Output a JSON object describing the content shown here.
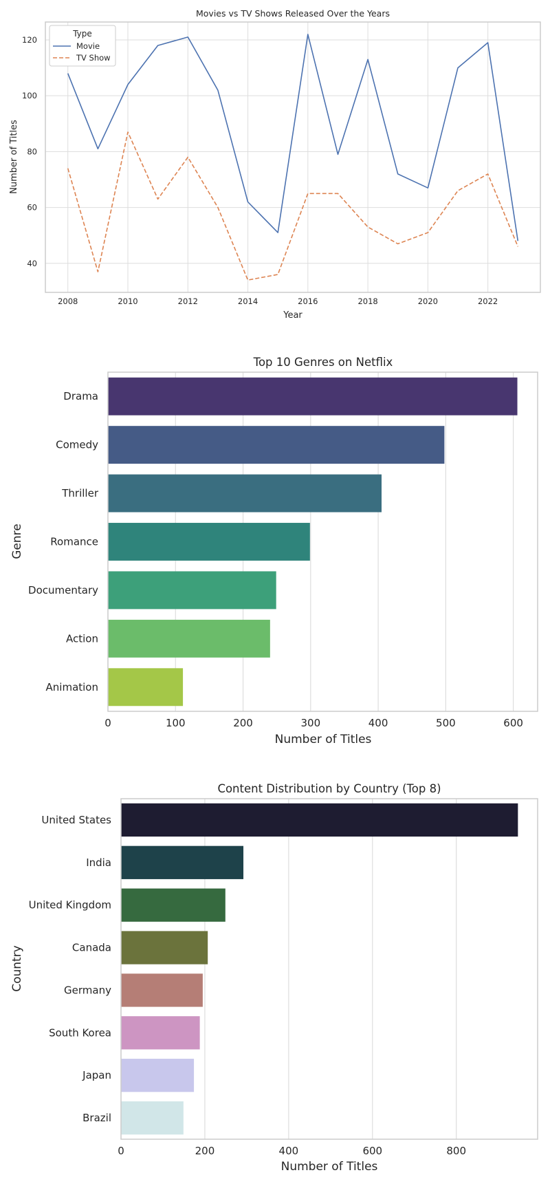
{
  "chart_data": [
    {
      "type": "line",
      "title": "Movies vs TV Shows Released Over the Years",
      "xlabel": "Year",
      "ylabel": "Number of Titles",
      "x": [
        2008,
        2009,
        2010,
        2011,
        2012,
        2013,
        2014,
        2015,
        2016,
        2017,
        2018,
        2019,
        2020,
        2021,
        2022,
        2023
      ],
      "xticks": [
        2008,
        2010,
        2012,
        2014,
        2016,
        2018,
        2020,
        2022
      ],
      "yticks": [
        40,
        60,
        80,
        100,
        120
      ],
      "xlim": [
        2007.25,
        2023.75
      ],
      "ylim": [
        29.6,
        126.4
      ],
      "grid": true,
      "legend": {
        "title": "Type",
        "placement": "top-left"
      },
      "series": [
        {
          "name": "Movie",
          "color": "#4c72b0",
          "dash": "solid",
          "values": [
            108,
            81,
            104,
            118,
            121,
            102,
            62,
            51,
            122,
            79,
            113,
            72,
            67,
            110,
            119,
            48
          ]
        },
        {
          "name": "TV Show",
          "color": "#dd8452",
          "dash": "dashed",
          "values": [
            74,
            37,
            87,
            63,
            78,
            60,
            34,
            36,
            65,
            65,
            53,
            47,
            51,
            66,
            72,
            46
          ]
        }
      ]
    },
    {
      "type": "bar",
      "orientation": "horizontal",
      "title": "Top 10 Genres on Netflix",
      "xlabel": "Number of Titles",
      "ylabel": "Genre",
      "categories": [
        "Drama",
        "Comedy",
        "Thriller",
        "Romance",
        "Documentary",
        "Action",
        "Animation"
      ],
      "values": [
        606,
        498,
        405,
        299,
        249,
        240,
        111
      ],
      "colors": [
        "#48366f",
        "#455b86",
        "#3a6e80",
        "#2f847b",
        "#3da07a",
        "#6bbc6a",
        "#a4c748"
      ],
      "xticks": [
        0,
        100,
        200,
        300,
        400,
        500,
        600
      ],
      "xlim": [
        0,
        636
      ],
      "grid": true
    },
    {
      "type": "bar",
      "orientation": "horizontal",
      "title": "Content Distribution by Country (Top 8)",
      "xlabel": "Number of Titles",
      "ylabel": "Country",
      "categories": [
        "United States",
        "India",
        "United Kingdom",
        "Canada",
        "Germany",
        "South Korea",
        "Japan",
        "Brazil"
      ],
      "values": [
        947,
        292,
        249,
        207,
        195,
        188,
        174,
        149
      ],
      "colors": [
        "#1e1c31",
        "#1e424a",
        "#366a3f",
        "#6b733c",
        "#b57e76",
        "#cd95c2",
        "#c8c7ec",
        "#d1e6e8"
      ],
      "xticks": [
        0,
        200,
        400,
        600,
        800
      ],
      "xlim": [
        0,
        994
      ],
      "grid": true
    }
  ]
}
